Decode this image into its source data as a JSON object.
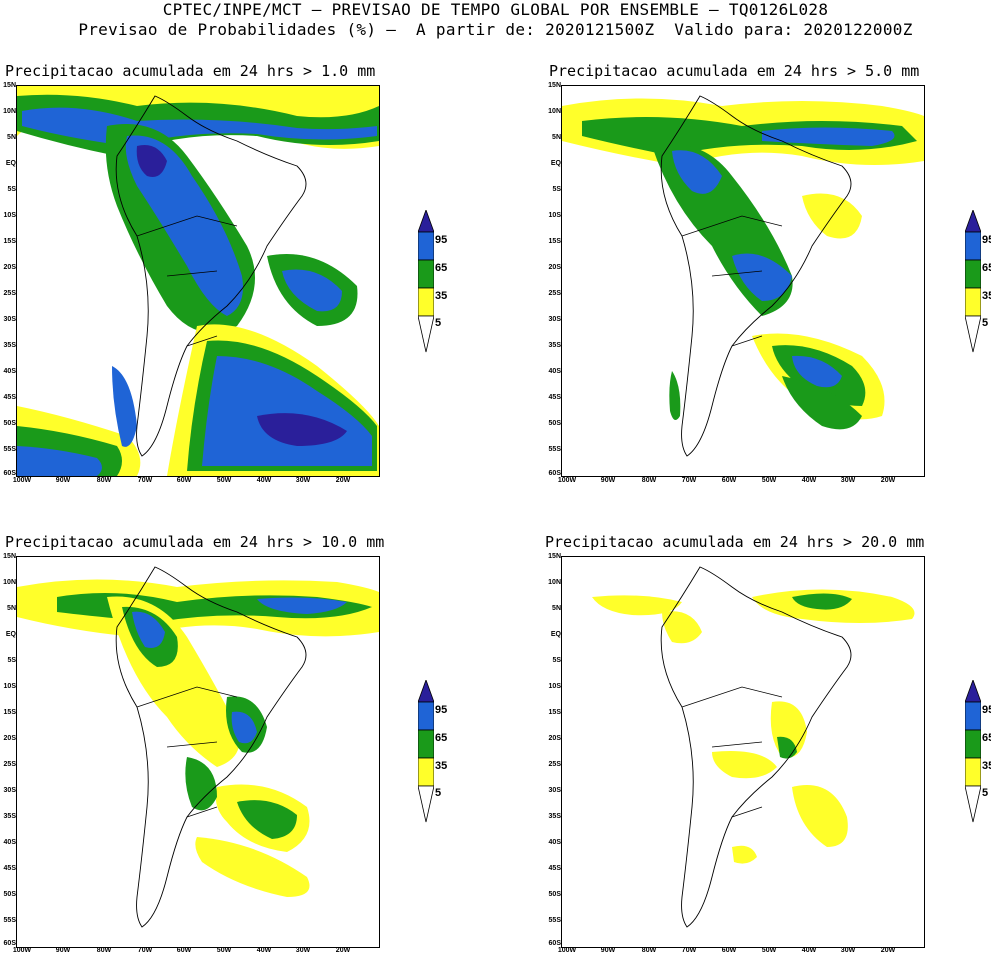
{
  "header": {
    "line1": "CPTEC/INPE/MCT – PREVISAO DE TEMPO GLOBAL POR ENSEMBLE – TQ0126L028",
    "line2": "Previsao de Probabilidades (%) –  A partir de: 2020121500Z  Valido para: 2020122000Z"
  },
  "panels": [
    {
      "title": "Precipitacao acumulada em 24 hrs > 1.0 mm"
    },
    {
      "title": "Precipitacao acumulada em 24 hrs > 5.0 mm"
    },
    {
      "title": "Precipitacao acumulada em 24 hrs > 10.0 mm"
    },
    {
      "title": "Precipitacao acumulada em 24 hrs > 20.0 mm"
    }
  ],
  "axes": {
    "lat_labels": [
      "15N",
      "10N",
      "5N",
      "EQ",
      "5S",
      "10S",
      "15S",
      "20S",
      "25S",
      "30S",
      "35S",
      "40S",
      "45S",
      "50S",
      "55S",
      "60S"
    ],
    "lon_labels": [
      "100W",
      "90W",
      "80W",
      "70W",
      "60W",
      "50W",
      "40W",
      "30W",
      "20W"
    ]
  },
  "legend": {
    "labels": [
      "95",
      "65",
      "35",
      "5"
    ],
    "colors": {
      "p95": "#2a1f9a",
      "p65": "#1f64d6",
      "p35": "#1a9a1a",
      "p5": "#ffff2a"
    }
  }
}
